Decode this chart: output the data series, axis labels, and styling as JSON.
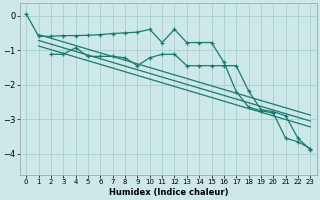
{
  "xlabel": "Humidex (Indice chaleur)",
  "bg_color": "#cce8e8",
  "grid_color": "#aacfcf",
  "line_color": "#1a7a6e",
  "xlim": [
    -0.5,
    23.5
  ],
  "ylim": [
    -4.6,
    0.35
  ],
  "yticks": [
    0,
    -1,
    -2,
    -3,
    -4
  ],
  "xticks": [
    0,
    1,
    2,
    3,
    4,
    5,
    6,
    7,
    8,
    9,
    10,
    11,
    12,
    13,
    14,
    15,
    16,
    17,
    18,
    19,
    20,
    21,
    22,
    23
  ],
  "series1_x": [
    0,
    1,
    2,
    3,
    4,
    5,
    6,
    7,
    8,
    9,
    10,
    11,
    12,
    13,
    14,
    15,
    16,
    17,
    18,
    19,
    20,
    21,
    22,
    23
  ],
  "series1_y": [
    0.05,
    -0.6,
    -0.6,
    -0.58,
    -0.58,
    -0.57,
    -0.55,
    -0.52,
    -0.5,
    -0.48,
    -0.4,
    -0.78,
    -0.4,
    -0.78,
    -0.78,
    -0.78,
    -1.35,
    -2.2,
    -2.65,
    -2.75,
    -2.82,
    -3.55,
    -3.65,
    -3.85
  ],
  "series2_x": [
    2,
    3,
    4,
    5,
    6,
    7,
    8,
    9,
    10,
    11,
    12,
    13,
    14,
    15,
    16,
    17,
    18,
    19,
    20,
    21,
    22,
    23
  ],
  "series2_y": [
    -1.12,
    -1.12,
    -0.93,
    -1.18,
    -1.18,
    -1.18,
    -1.22,
    -1.45,
    -1.22,
    -1.12,
    -1.12,
    -1.45,
    -1.45,
    -1.45,
    -1.45,
    -1.45,
    -2.18,
    -2.72,
    -2.78,
    -2.9,
    -3.55,
    -3.88
  ],
  "line1_x": [
    1,
    23
  ],
  "line1_y": [
    -0.55,
    -2.88
  ],
  "line2_x": [
    1,
    23
  ],
  "line2_y": [
    -0.72,
    -3.05
  ],
  "line3_x": [
    1,
    23
  ],
  "line3_y": [
    -0.88,
    -3.22
  ]
}
